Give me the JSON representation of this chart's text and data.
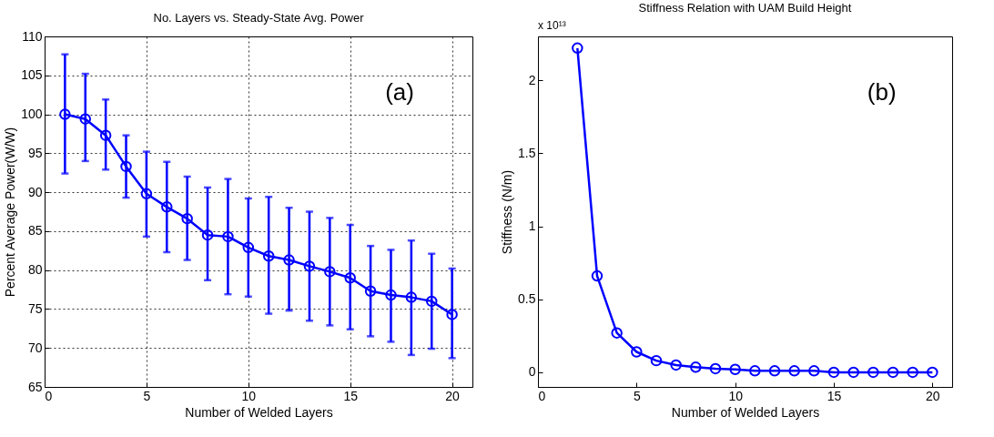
{
  "chart_data": [
    {
      "type": "line",
      "title": "No. Layers vs. Steady-State Avg. Power",
      "xlabel": "Number of Welded Layers",
      "ylabel": "Percent Average Power(W/W)",
      "annotations": [
        "(a)"
      ],
      "x": [
        1,
        2,
        3,
        4,
        5,
        6,
        7,
        8,
        9,
        10,
        11,
        12,
        13,
        14,
        15,
        16,
        17,
        18,
        19,
        20
      ],
      "values": [
        100,
        99.4,
        97.3,
        93.3,
        89.8,
        88.1,
        86.6,
        84.5,
        84.3,
        82.9,
        81.8,
        81.3,
        80.5,
        79.8,
        79.0,
        77.3,
        76.8,
        76.5,
        76.0,
        74.3
      ],
      "errors": [
        [
          92.4,
          107.7
        ],
        [
          94,
          105.2
        ],
        [
          92.9,
          101.9
        ],
        [
          89.3,
          97.3
        ],
        [
          84.3,
          95.2
        ],
        [
          82.3,
          93.9
        ],
        [
          81.3,
          92
        ],
        [
          78.7,
          90.6
        ],
        [
          76.9,
          91.7
        ],
        [
          76.6,
          89.2
        ],
        [
          74.4,
          89.4
        ],
        [
          74.8,
          88
        ],
        [
          73.5,
          87.5
        ],
        [
          72.9,
          86.7
        ],
        [
          72.4,
          85.8
        ],
        [
          71.5,
          83.1
        ],
        [
          70.8,
          82.6
        ],
        [
          69.1,
          83.8
        ],
        [
          69.9,
          82.1
        ],
        [
          68.7,
          80.2
        ]
      ],
      "color": "#0000ff",
      "marker": "circle",
      "line_style": "solid",
      "grid": true,
      "xlim": [
        0,
        21
      ],
      "xticks": [
        0,
        5,
        10,
        15,
        20
      ],
      "ylim": [
        65,
        110
      ],
      "yticks": [
        65,
        70,
        75,
        80,
        85,
        90,
        95,
        100,
        105,
        110
      ]
    },
    {
      "type": "line",
      "title": "Stiffness Relation with UAM Build Height",
      "xlabel": "Number of Welded Layers",
      "ylabel": "Stiffness (N/m)",
      "annotations": [
        "(b)",
        "x 10¹³"
      ],
      "x": [
        2,
        3,
        4,
        5,
        6,
        7,
        8,
        9,
        10,
        11,
        12,
        13,
        14,
        15,
        16,
        17,
        18,
        19,
        20
      ],
      "values": [
        2.22,
        0.66,
        0.27,
        0.14,
        0.08,
        0.05,
        0.035,
        0.025,
        0.02,
        0.01,
        0.01,
        0.01,
        0.01,
        0,
        0,
        0,
        0,
        0,
        0
      ],
      "color": "#0000ff",
      "marker": "circle",
      "line_style": "solid",
      "grid": false,
      "xlim": [
        0,
        21
      ],
      "xticks": [
        0,
        5,
        10,
        15,
        20
      ],
      "ylim": [
        -0.1,
        2.3
      ],
      "yticks": [
        0,
        0.5,
        1,
        1.5,
        2
      ]
    }
  ]
}
